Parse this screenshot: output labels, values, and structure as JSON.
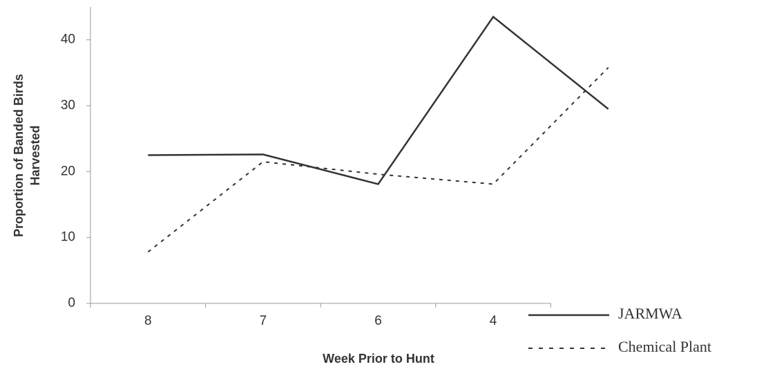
{
  "chart_data": {
    "type": "line",
    "x_label": "Week Prior to Hunt",
    "y_label": [
      "Proportion of Banded Birds",
      "Harvested"
    ],
    "categories": [
      "8",
      "7",
      "6",
      "4",
      null
    ],
    "series": [
      {
        "name": "JARMWA",
        "color": "#333333",
        "dashed": false,
        "values": [
          22.5,
          22.6,
          18.1,
          43.5,
          29.5
        ]
      },
      {
        "name": "Chemical Plant",
        "color": "#333333",
        "dashed": true,
        "values": [
          7.8,
          21.5,
          19.6,
          18.1,
          35.8
        ]
      }
    ],
    "ylim": [
      0,
      45
    ],
    "yticks": [
      0,
      10,
      20,
      30,
      40
    ],
    "grid": false,
    "legend": "bottom-right"
  }
}
